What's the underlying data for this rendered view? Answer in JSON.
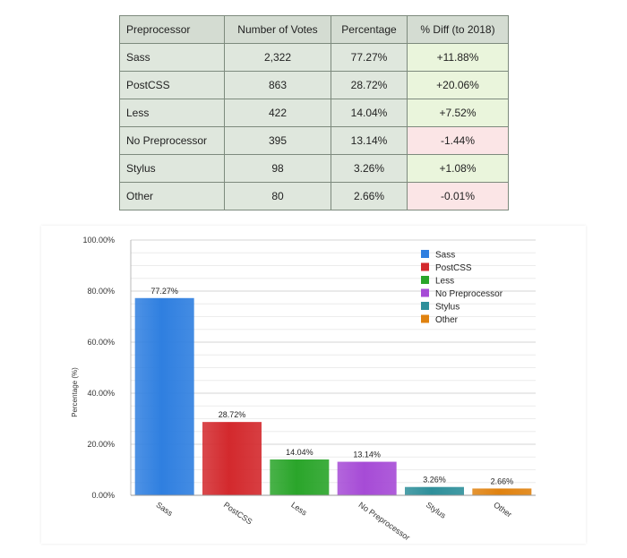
{
  "table": {
    "headers": [
      "Preprocessor",
      "Number of Votes",
      "Percentage",
      "% Diff (to 2018)"
    ],
    "rows": [
      {
        "name": "Sass",
        "votes": "2,322",
        "percentage": "77.27%",
        "diff": "+11.88%",
        "diff_sign": "pos"
      },
      {
        "name": "PostCSS",
        "votes": "863",
        "percentage": "28.72%",
        "diff": "+20.06%",
        "diff_sign": "pos"
      },
      {
        "name": "Less",
        "votes": "422",
        "percentage": "14.04%",
        "diff": "+7.52%",
        "diff_sign": "pos"
      },
      {
        "name": "No Preprocessor",
        "votes": "395",
        "percentage": "13.14%",
        "diff": "-1.44%",
        "diff_sign": "neg"
      },
      {
        "name": "Stylus",
        "votes": "98",
        "percentage": "3.26%",
        "diff": "+1.08%",
        "diff_sign": "pos"
      },
      {
        "name": "Other",
        "votes": "80",
        "percentage": "2.66%",
        "diff": "-0.01%",
        "diff_sign": "neg"
      }
    ]
  },
  "chart_data": {
    "type": "bar",
    "categories": [
      "Sass",
      "PostCSS",
      "Less",
      "No Preprocessor",
      "Stylus",
      "Other"
    ],
    "values": [
      77.27,
      28.72,
      14.04,
      13.14,
      3.26,
      2.66
    ],
    "data_labels": [
      "77.27%",
      "28.72%",
      "14.04%",
      "13.14%",
      "3.26%",
      "2.66%"
    ],
    "colors": [
      "#2f7fe0",
      "#d3292d",
      "#2aa52a",
      "#a64bd6",
      "#2e8f9a",
      "#e0820f"
    ],
    "ylabel": "Percentage (%)",
    "ylim": [
      0,
      100
    ],
    "yticks": [
      "0.00%",
      "20.00%",
      "40.00%",
      "60.00%",
      "80.00%",
      "100.00%"
    ],
    "grid": true,
    "legend": {
      "position": "top-right",
      "entries": [
        "Sass",
        "PostCSS",
        "Less",
        "No Preprocessor",
        "Stylus",
        "Other"
      ]
    }
  }
}
